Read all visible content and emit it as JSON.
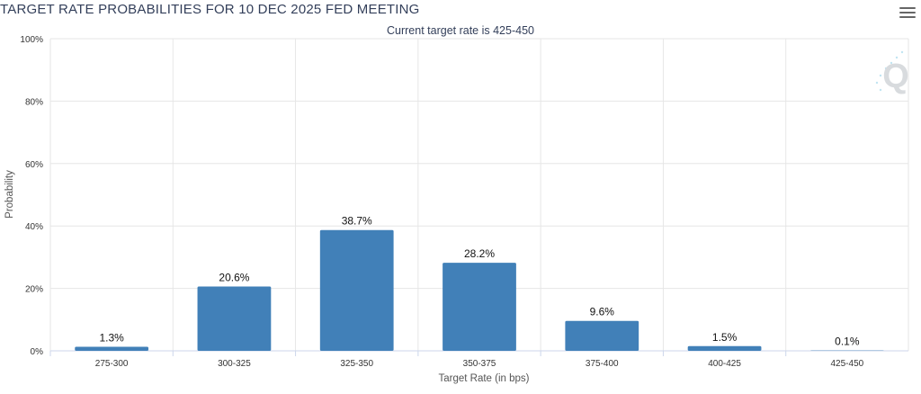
{
  "header": {
    "title": "TARGET RATE PROBABILITIES FOR 10 DEC 2025 FED MEETING",
    "menu_icon": "hamburger-menu-icon",
    "watermark": "Q"
  },
  "chart_data": {
    "type": "bar",
    "title": "TARGET RATE PROBABILITIES FOR 10 DEC 2025 FED MEETING",
    "subtitle": "Current target rate is 425-450",
    "xlabel": "Target Rate (in bps)",
    "ylabel": "Probability",
    "ylim": [
      0,
      100
    ],
    "yticks": [
      0,
      20,
      40,
      60,
      80,
      100
    ],
    "ytick_labels": [
      "0%",
      "20%",
      "40%",
      "60%",
      "80%",
      "100%"
    ],
    "grid": true,
    "categories": [
      "275-300",
      "300-325",
      "325-350",
      "350-375",
      "375-400",
      "400-425",
      "425-450"
    ],
    "values": [
      1.3,
      20.6,
      38.7,
      28.2,
      9.6,
      1.5,
      0.1
    ],
    "data_labels": [
      "1.3%",
      "20.6%",
      "38.7%",
      "28.2%",
      "9.6%",
      "1.5%",
      "0.1%"
    ],
    "bar_color": "#4180b8",
    "grid_color": "#e6e6e6"
  }
}
